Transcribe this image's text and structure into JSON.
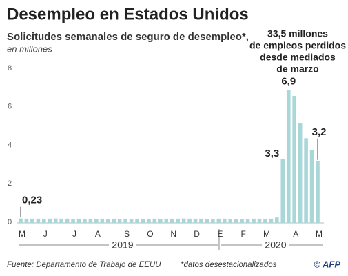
{
  "chart_data": {
    "type": "bar",
    "title": "Desempleo en Estados Unidos",
    "subtitle": "Solicitudes semanales de seguro de desempleo*,",
    "unit_label": "en millones",
    "annotation": [
      "33,5 millones",
      "de empleos perdidos",
      "desde mediados",
      "de marzo"
    ],
    "year_labels": [
      "2019",
      "2020"
    ],
    "source": "Fuente: Departamento de Trabajo de EEUU",
    "note": "*datos desestacionalizados",
    "credit": "© AFP",
    "color": "#a9d6d7",
    "annotation_color": "#4db3b5",
    "grid": false,
    "ylim": [
      0,
      8
    ],
    "yticks": [
      0,
      2,
      4,
      6,
      8
    ],
    "categories": [
      "M",
      null,
      null,
      null,
      "J",
      null,
      null,
      null,
      null,
      "J",
      null,
      null,
      null,
      "A",
      null,
      null,
      null,
      null,
      "S",
      null,
      null,
      null,
      "O",
      null,
      null,
      null,
      "N",
      null,
      null,
      null,
      "D",
      null,
      null,
      null,
      "E",
      null,
      null,
      null,
      "F",
      null,
      null,
      null,
      "M",
      null,
      null,
      null,
      null,
      "A",
      null,
      null,
      null,
      "M"
    ],
    "values": [
      0.23,
      0.22,
      0.22,
      0.22,
      0.21,
      0.22,
      0.23,
      0.22,
      0.22,
      0.21,
      0.22,
      0.21,
      0.21,
      0.21,
      0.22,
      0.21,
      0.22,
      0.21,
      0.21,
      0.21,
      0.21,
      0.21,
      0.21,
      0.22,
      0.21,
      0.22,
      0.22,
      0.22,
      0.23,
      0.22,
      0.22,
      0.22,
      0.21,
      0.21,
      0.22,
      0.22,
      0.21,
      0.21,
      0.21,
      0.21,
      0.22,
      0.22,
      0.21,
      0.22,
      0.28,
      3.3,
      6.9,
      6.6,
      5.2,
      4.4,
      3.8,
      3.2
    ],
    "value_labels": [
      "0,23",
      null,
      null,
      null,
      null,
      null,
      null,
      null,
      null,
      null,
      null,
      null,
      null,
      null,
      null,
      null,
      null,
      null,
      null,
      null,
      null,
      null,
      null,
      null,
      null,
      null,
      null,
      null,
      null,
      null,
      null,
      null,
      null,
      null,
      null,
      null,
      null,
      null,
      null,
      null,
      null,
      null,
      null,
      null,
      null,
      "3,3",
      "6,9",
      null,
      null,
      null,
      null,
      "3,2"
    ]
  }
}
